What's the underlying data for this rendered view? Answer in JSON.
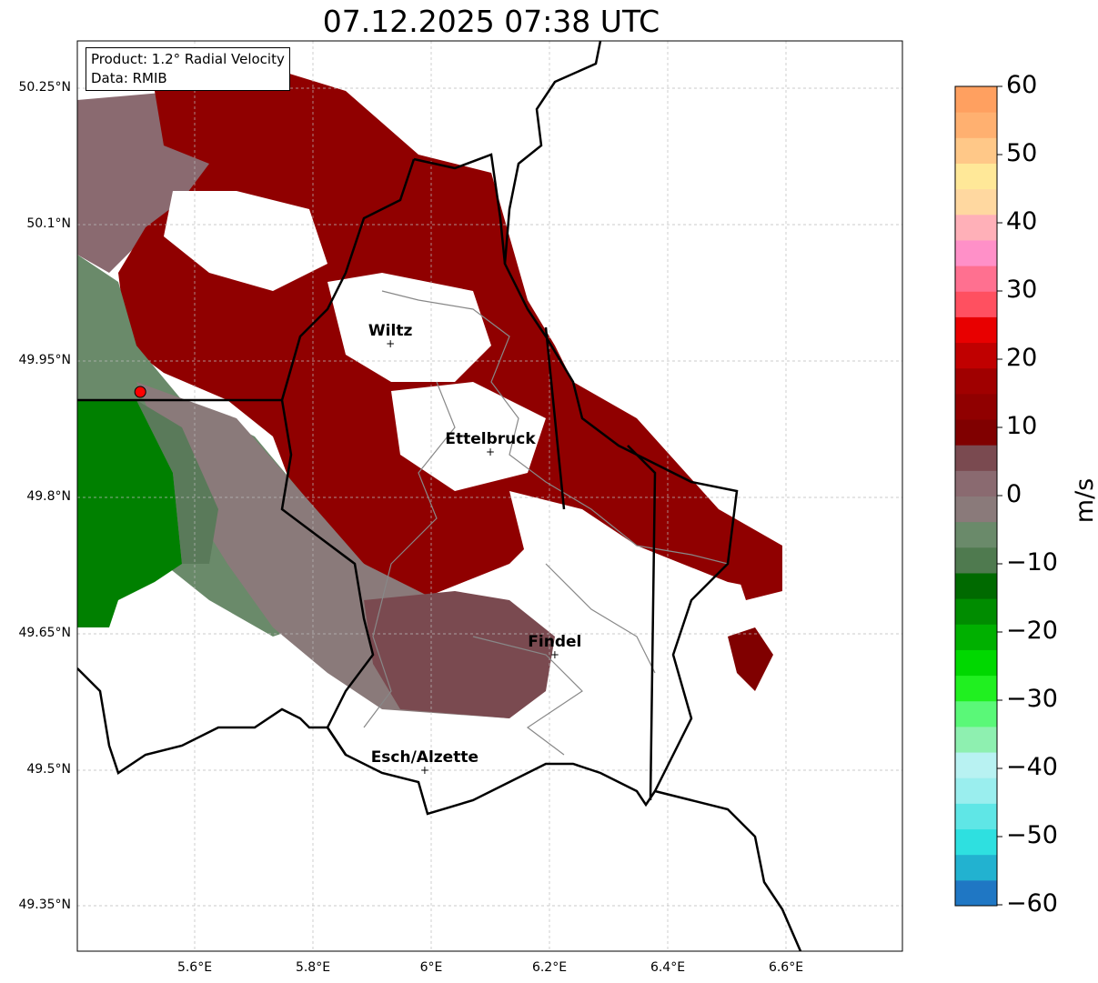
{
  "title": "07.12.2025 07:38 UTC",
  "info": {
    "product": "Product: 1.2° Radial Velocity",
    "data": "Data: RMIB"
  },
  "lat_ticks": [
    "50.25°N",
    "50.1°N",
    "49.95°N",
    "49.8°N",
    "49.65°N",
    "49.5°N",
    "49.35°N"
  ],
  "lon_ticks": [
    "5.6°E",
    "5.8°E",
    "6°E",
    "6.2°E",
    "6.4°E",
    "6.6°E"
  ],
  "colorbar": {
    "unit": "m/s",
    "ticks": [
      "60",
      "50",
      "40",
      "30",
      "20",
      "10",
      "0",
      "−10",
      "−20",
      "−30",
      "−40",
      "−50",
      "−60"
    ],
    "range": [
      -60,
      60
    ],
    "colors": [
      "#1f77c4",
      "#22b2d0",
      "#2ee0e0",
      "#5fe6e6",
      "#9aeeee",
      "#b8f2f2",
      "#8ef0b0",
      "#5af878",
      "#20f020",
      "#00d800",
      "#00b000",
      "#008c00",
      "#006a00",
      "#4f7a4f",
      "#6a8a6a",
      "#8a7a7a",
      "#8a6a70",
      "#7a4a50",
      "#800000",
      "#900000",
      "#a00000",
      "#c00000",
      "#e80000",
      "#ff5060",
      "#ff7090",
      "#ff90c8",
      "#ffb0b8",
      "#ffd8a0",
      "#ffe898",
      "#ffc888",
      "#ffb070",
      "#ffa060"
    ]
  },
  "cities": [
    {
      "name": "Wiltz",
      "lat": 49.969,
      "lon": 5.931
    },
    {
      "name": "Ettelbruck",
      "lat": 49.85,
      "lon": 6.1
    },
    {
      "name": "Findel",
      "lat": 49.627,
      "lon": 6.209
    },
    {
      "name": "Esch/Alzette",
      "lat": 49.5,
      "lon": 5.989
    }
  ],
  "radar_site": {
    "lat": 49.916,
    "lon": 5.508
  }
}
